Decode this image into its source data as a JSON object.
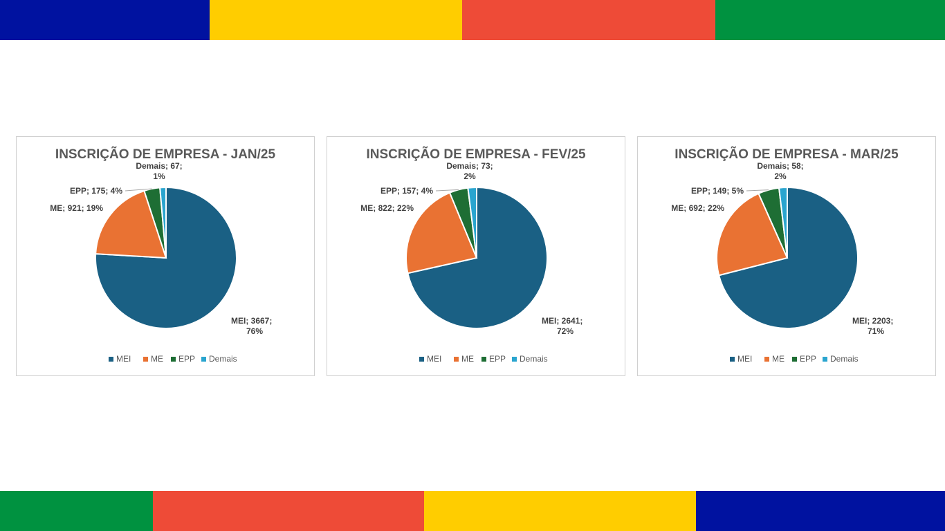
{
  "colors": {
    "MEI": "#1a6084",
    "ME": "#e97233",
    "EPP": "#1e6e34",
    "Demais": "#2aa5cf",
    "band_blue": "#0012a0",
    "band_yellow": "#ffcd00",
    "band_red": "#ee4b37",
    "band_green": "#009240"
  },
  "chart_data": [
    {
      "type": "pie",
      "title": "INSCRIÇÃO DE EMPRESA - JAN/25",
      "categories": [
        "MEI",
        "ME",
        "EPP",
        "Demais"
      ],
      "values": [
        3667,
        921,
        175,
        67
      ],
      "percent_labels": [
        "76%",
        "19%",
        "4%",
        "1%"
      ],
      "data_labels": [
        [
          "MEI; 3667;",
          "76%"
        ],
        [
          "ME; 921; 19%"
        ],
        [
          "EPP; 175; 4%"
        ],
        [
          "Demais; 67;",
          "1%"
        ]
      ],
      "legend": {
        "position": "bottom",
        "entries": [
          "MEI",
          "ME",
          "EPP",
          "Demais"
        ]
      }
    },
    {
      "type": "pie",
      "title": "INSCRIÇÃO DE EMPRESA - FEV/25",
      "categories": [
        "MEI",
        "ME",
        "EPP",
        "Demais"
      ],
      "values": [
        2641,
        822,
        157,
        73
      ],
      "percent_labels": [
        "72%",
        "22%",
        "4%",
        "2%"
      ],
      "data_labels": [
        [
          "MEI; 2641;",
          "72%"
        ],
        [
          "ME; 822; 22%"
        ],
        [
          "EPP; 157; 4%"
        ],
        [
          "Demais; 73;",
          "2%"
        ]
      ],
      "legend": {
        "position": "bottom",
        "entries": [
          "MEI",
          "ME",
          "EPP",
          "Demais"
        ]
      }
    },
    {
      "type": "pie",
      "title": "INSCRIÇÃO DE EMPRESA - MAR/25",
      "categories": [
        "MEI",
        "ME",
        "EPP",
        "Demais"
      ],
      "values": [
        2203,
        692,
        149,
        58
      ],
      "percent_labels": [
        "71%",
        "22%",
        "5%",
        "2%"
      ],
      "data_labels": [
        [
          "MEI; 2203;",
          "71%"
        ],
        [
          "ME; 692; 22%"
        ],
        [
          "EPP; 149; 5%"
        ],
        [
          "Demais; 58;",
          "2%"
        ]
      ],
      "legend": {
        "position": "bottom",
        "entries": [
          "MEI",
          "ME",
          "EPP",
          "Demais"
        ]
      }
    }
  ]
}
